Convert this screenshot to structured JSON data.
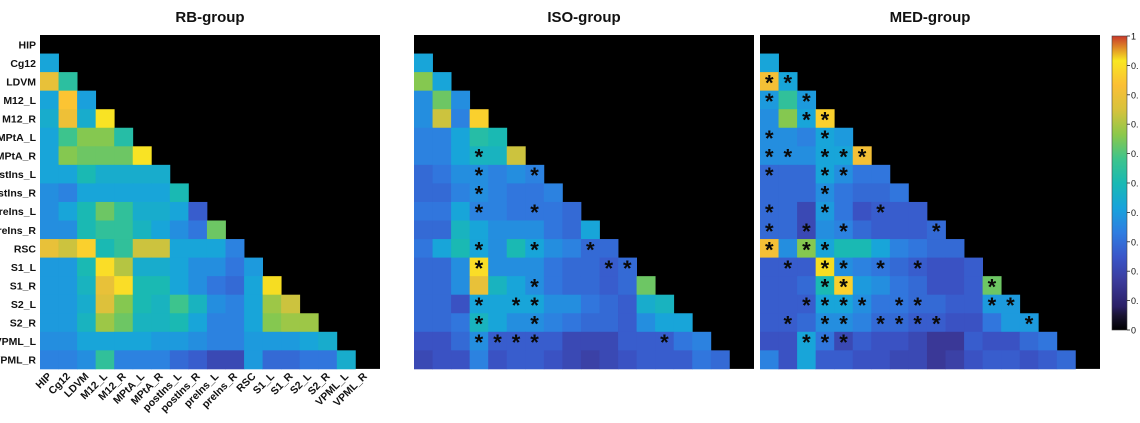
{
  "chart_data": {
    "type": "heatmap",
    "regions": [
      "HIP",
      "Cg12",
      "LDVM",
      "M12_L",
      "M12_R",
      "MPtA_L",
      "MPtA_R",
      "postIns_L",
      "postIns_R",
      "preIns_L",
      "preIns_R",
      "RSC",
      "S1_L",
      "S1_R",
      "S2_L",
      "S2_R",
      "VPML_L",
      "VPML_R"
    ],
    "colorbar": {
      "tick_labels": [
        "1",
        "0.",
        "0.",
        "0.",
        "0.",
        "0.",
        "0.",
        "0.",
        "0.",
        "0.",
        "0"
      ],
      "colors": [
        "#2a1f66",
        "#3b3a9a",
        "#3a55c8",
        "#2f7de1",
        "#18a3dc",
        "#19b9b4",
        "#3ec48c",
        "#8cc84a",
        "#d7c23c",
        "#fbbf35",
        "#f9e722",
        "#c8382a"
      ]
    },
    "panels": [
      {
        "title": "RB-group",
        "values": [
          [],
          [
            0.56
          ],
          [
            0.84,
            0.65
          ],
          [
            0.56,
            0.88,
            0.55
          ],
          [
            0.58,
            0.85,
            0.58,
            0.93
          ],
          [
            0.56,
            0.68,
            0.74,
            0.74,
            0.64
          ],
          [
            0.56,
            0.74,
            0.72,
            0.72,
            0.72,
            0.93
          ],
          [
            0.56,
            0.56,
            0.62,
            0.58,
            0.58,
            0.58,
            0.58
          ],
          [
            0.52,
            0.5,
            0.56,
            0.56,
            0.56,
            0.56,
            0.56,
            0.62
          ],
          [
            0.52,
            0.56,
            0.62,
            0.72,
            0.66,
            0.58,
            0.58,
            0.56,
            0.44
          ],
          [
            0.52,
            0.52,
            0.62,
            0.66,
            0.66,
            0.6,
            0.56,
            0.52,
            0.48,
            0.72
          ],
          [
            0.84,
            0.8,
            0.9,
            0.62,
            0.66,
            0.8,
            0.8,
            0.56,
            0.56,
            0.56,
            0.5
          ],
          [
            0.54,
            0.54,
            0.62,
            0.92,
            0.78,
            0.58,
            0.58,
            0.56,
            0.52,
            0.52,
            0.48,
            0.54
          ],
          [
            0.54,
            0.54,
            0.6,
            0.84,
            0.92,
            0.62,
            0.62,
            0.56,
            0.52,
            0.48,
            0.46,
            0.56,
            0.94
          ],
          [
            0.54,
            0.54,
            0.58,
            0.82,
            0.74,
            0.62,
            0.6,
            0.68,
            0.6,
            0.52,
            0.5,
            0.56,
            0.76,
            0.8
          ],
          [
            0.54,
            0.54,
            0.6,
            0.76,
            0.72,
            0.6,
            0.6,
            0.62,
            0.56,
            0.5,
            0.5,
            0.56,
            0.74,
            0.76,
            0.76
          ],
          [
            0.52,
            0.52,
            0.56,
            0.56,
            0.56,
            0.56,
            0.54,
            0.54,
            0.52,
            0.5,
            0.5,
            0.54,
            0.54,
            0.54,
            0.56,
            0.58
          ],
          [
            0.5,
            0.5,
            0.52,
            0.66,
            0.5,
            0.5,
            0.5,
            0.46,
            0.44,
            0.4,
            0.4,
            0.54,
            0.46,
            0.46,
            0.48,
            0.48,
            0.58
          ]
        ],
        "stars": []
      },
      {
        "title": "ISO-group",
        "values": [
          [],
          [
            0.56
          ],
          [
            0.74,
            0.56
          ],
          [
            0.52,
            0.72,
            0.52
          ],
          [
            0.52,
            0.8,
            0.5,
            0.9
          ],
          [
            0.5,
            0.5,
            0.56,
            0.64,
            0.62
          ],
          [
            0.5,
            0.5,
            0.56,
            0.6,
            0.6,
            0.8
          ],
          [
            0.46,
            0.48,
            0.52,
            0.52,
            0.5,
            0.52,
            0.5
          ],
          [
            0.46,
            0.46,
            0.5,
            0.52,
            0.5,
            0.48,
            0.48,
            0.5
          ],
          [
            0.48,
            0.48,
            0.56,
            0.5,
            0.5,
            0.48,
            0.48,
            0.48,
            0.46
          ],
          [
            0.46,
            0.46,
            0.6,
            0.56,
            0.52,
            0.52,
            0.52,
            0.48,
            0.46,
            0.56
          ],
          [
            0.48,
            0.56,
            0.62,
            0.56,
            0.52,
            0.62,
            0.56,
            0.52,
            0.5,
            0.46,
            0.46
          ],
          [
            0.46,
            0.46,
            0.52,
            0.92,
            0.52,
            0.52,
            0.52,
            0.48,
            0.46,
            0.46,
            0.44,
            0.46
          ],
          [
            0.46,
            0.46,
            0.52,
            0.84,
            0.6,
            0.56,
            0.52,
            0.48,
            0.46,
            0.46,
            0.44,
            0.46,
            0.72
          ],
          [
            0.46,
            0.46,
            0.42,
            0.56,
            0.56,
            0.56,
            0.56,
            0.52,
            0.52,
            0.48,
            0.46,
            0.44,
            0.58,
            0.6
          ],
          [
            0.46,
            0.46,
            0.48,
            0.6,
            0.56,
            0.52,
            0.52,
            0.5,
            0.48,
            0.46,
            0.46,
            0.44,
            0.52,
            0.56,
            0.56
          ],
          [
            0.42,
            0.42,
            0.46,
            0.52,
            0.44,
            0.44,
            0.44,
            0.44,
            0.4,
            0.4,
            0.4,
            0.44,
            0.44,
            0.44,
            0.48,
            0.5
          ],
          [
            0.4,
            0.42,
            0.42,
            0.5,
            0.42,
            0.44,
            0.44,
            0.42,
            0.4,
            0.38,
            0.4,
            0.42,
            0.44,
            0.44,
            0.44,
            0.48,
            0.46
          ]
        ],
        "stars": [
          [
            6,
            3
          ],
          [
            7,
            3
          ],
          [
            7,
            6
          ],
          [
            8,
            3
          ],
          [
            9,
            3
          ],
          [
            9,
            6
          ],
          [
            11,
            3
          ],
          [
            11,
            6
          ],
          [
            11,
            9
          ],
          [
            12,
            3
          ],
          [
            12,
            10
          ],
          [
            12,
            11
          ],
          [
            13,
            6
          ],
          [
            14,
            3
          ],
          [
            14,
            5
          ],
          [
            14,
            6
          ],
          [
            15,
            3
          ],
          [
            15,
            6
          ],
          [
            16,
            3
          ],
          [
            16,
            4
          ],
          [
            16,
            5
          ],
          [
            16,
            6
          ],
          [
            16,
            13
          ]
        ]
      },
      {
        "title": "MED-group",
        "values": [
          [],
          [
            0.56
          ],
          [
            0.86,
            0.56
          ],
          [
            0.54,
            0.66,
            0.54
          ],
          [
            0.52,
            0.74,
            0.56,
            0.9
          ],
          [
            0.52,
            0.52,
            0.5,
            0.56,
            0.54
          ],
          [
            0.52,
            0.52,
            0.52,
            0.56,
            0.56,
            0.86
          ],
          [
            0.46,
            0.46,
            0.46,
            0.56,
            0.52,
            0.48,
            0.48
          ],
          [
            0.46,
            0.46,
            0.46,
            0.52,
            0.48,
            0.46,
            0.46,
            0.48
          ],
          [
            0.46,
            0.46,
            0.4,
            0.54,
            0.48,
            0.42,
            0.44,
            0.44,
            0.44
          ],
          [
            0.46,
            0.46,
            0.4,
            0.52,
            0.5,
            0.46,
            0.44,
            0.44,
            0.44,
            0.46
          ],
          [
            0.86,
            0.52,
            0.74,
            0.56,
            0.62,
            0.62,
            0.56,
            0.5,
            0.48,
            0.46,
            0.46
          ],
          [
            0.44,
            0.44,
            0.44,
            0.94,
            0.52,
            0.5,
            0.48,
            0.46,
            0.44,
            0.42,
            0.42,
            0.44
          ],
          [
            0.44,
            0.44,
            0.46,
            0.62,
            0.9,
            0.54,
            0.52,
            0.48,
            0.46,
            0.42,
            0.42,
            0.44,
            0.72
          ],
          [
            0.44,
            0.44,
            0.44,
            0.56,
            0.56,
            0.52,
            0.48,
            0.48,
            0.46,
            0.46,
            0.44,
            0.44,
            0.54,
            0.54
          ],
          [
            0.44,
            0.44,
            0.46,
            0.52,
            0.52,
            0.5,
            0.46,
            0.46,
            0.44,
            0.44,
            0.42,
            0.42,
            0.48,
            0.54,
            0.54
          ],
          [
            0.42,
            0.42,
            0.56,
            0.48,
            0.4,
            0.44,
            0.42,
            0.42,
            0.4,
            0.36,
            0.36,
            0.44,
            0.42,
            0.42,
            0.46,
            0.48
          ],
          [
            0.5,
            0.42,
            0.56,
            0.44,
            0.44,
            0.42,
            0.42,
            0.4,
            0.4,
            0.36,
            0.38,
            0.42,
            0.44,
            0.44,
            0.42,
            0.44,
            0.46
          ]
        ],
        "stars": [
          [
            2,
            0
          ],
          [
            2,
            1
          ],
          [
            3,
            0
          ],
          [
            3,
            2
          ],
          [
            4,
            2
          ],
          [
            4,
            3
          ],
          [
            5,
            0
          ],
          [
            5,
            3
          ],
          [
            6,
            0
          ],
          [
            6,
            1
          ],
          [
            6,
            3
          ],
          [
            6,
            4
          ],
          [
            6,
            5
          ],
          [
            7,
            0
          ],
          [
            7,
            3
          ],
          [
            7,
            4
          ],
          [
            8,
            3
          ],
          [
            9,
            0
          ],
          [
            9,
            3
          ],
          [
            9,
            6
          ],
          [
            10,
            0
          ],
          [
            10,
            2
          ],
          [
            10,
            4
          ],
          [
            10,
            9
          ],
          [
            11,
            0
          ],
          [
            11,
            2
          ],
          [
            11,
            3
          ],
          [
            12,
            1
          ],
          [
            12,
            3
          ],
          [
            12,
            4
          ],
          [
            12,
            6
          ],
          [
            12,
            8
          ],
          [
            13,
            3
          ],
          [
            13,
            4
          ],
          [
            13,
            12
          ],
          [
            14,
            2
          ],
          [
            14,
            3
          ],
          [
            14,
            4
          ],
          [
            14,
            5
          ],
          [
            14,
            7
          ],
          [
            14,
            8
          ],
          [
            14,
            12
          ],
          [
            14,
            13
          ],
          [
            15,
            1
          ],
          [
            15,
            3
          ],
          [
            15,
            4
          ],
          [
            15,
            6
          ],
          [
            15,
            7
          ],
          [
            15,
            8
          ],
          [
            15,
            9
          ],
          [
            15,
            14
          ],
          [
            16,
            2
          ],
          [
            16,
            3
          ],
          [
            16,
            4
          ]
        ]
      }
    ]
  }
}
